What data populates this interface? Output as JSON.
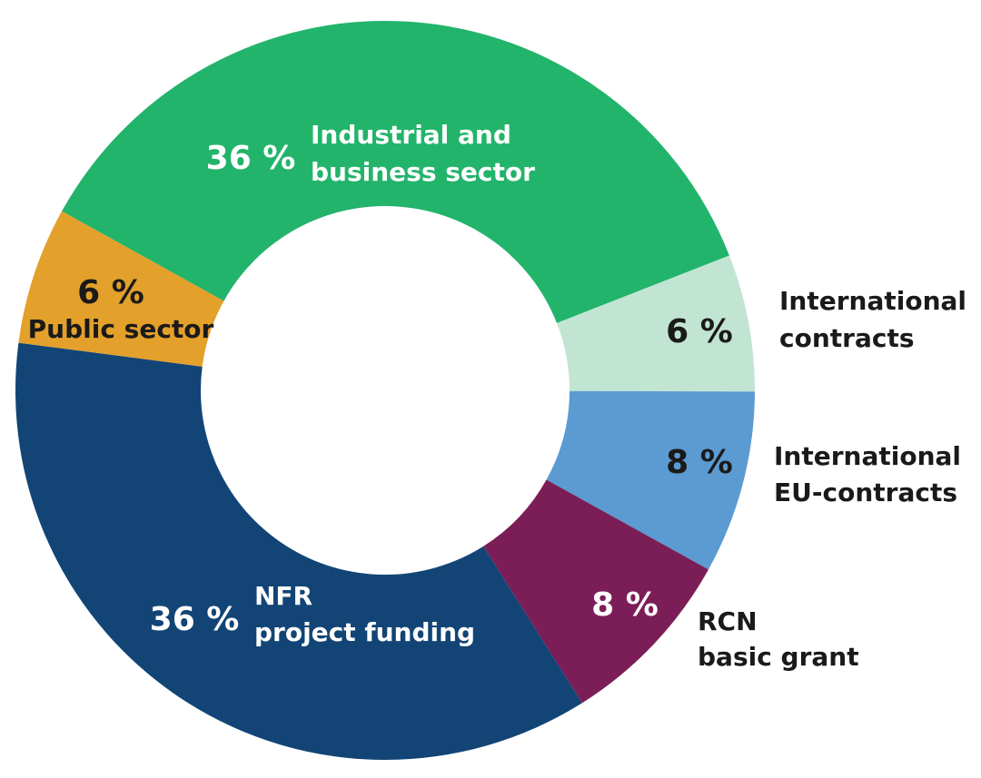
{
  "chart_data": {
    "type": "pie",
    "variant": "donut",
    "title": "",
    "legend": "none",
    "slices": [
      {
        "key": "industrial",
        "pct_label": "36 %",
        "value": 36,
        "label_lines": [
          "Industrial and",
          "business sector"
        ],
        "color": "#22b46b",
        "pct_color": "#ffffff",
        "label_color": "#ffffff"
      },
      {
        "key": "intl-contracts",
        "pct_label": "6 %",
        "value": 6,
        "label_lines": [
          "International",
          "contracts"
        ],
        "color": "#c2e5d3",
        "pct_color": "#1a1a1a",
        "label_color": "#1a1a1a"
      },
      {
        "key": "intl-eu",
        "pct_label": "8 %",
        "value": 8,
        "label_lines": [
          "International",
          "EU-contracts"
        ],
        "color": "#5b9bd2",
        "pct_color": "#1a1a1a",
        "label_color": "#1a1a1a"
      },
      {
        "key": "rcn",
        "pct_label": "8 %",
        "value": 8,
        "label_lines": [
          "RCN",
          "basic grant"
        ],
        "color": "#7b1e57",
        "pct_color": "#ffffff",
        "label_color": "#1a1a1a"
      },
      {
        "key": "nfr",
        "pct_label": "36 %",
        "value": 36,
        "label_lines": [
          "NFR",
          "project funding"
        ],
        "color": "#124576",
        "pct_color": "#ffffff",
        "label_color": "#ffffff"
      },
      {
        "key": "public",
        "pct_label": "6 %",
        "value": 6,
        "label_lines": [
          "Public sector"
        ],
        "color": "#e3a02a",
        "pct_color": "#1a1a1a",
        "label_color": "#1a1a1a"
      }
    ]
  }
}
